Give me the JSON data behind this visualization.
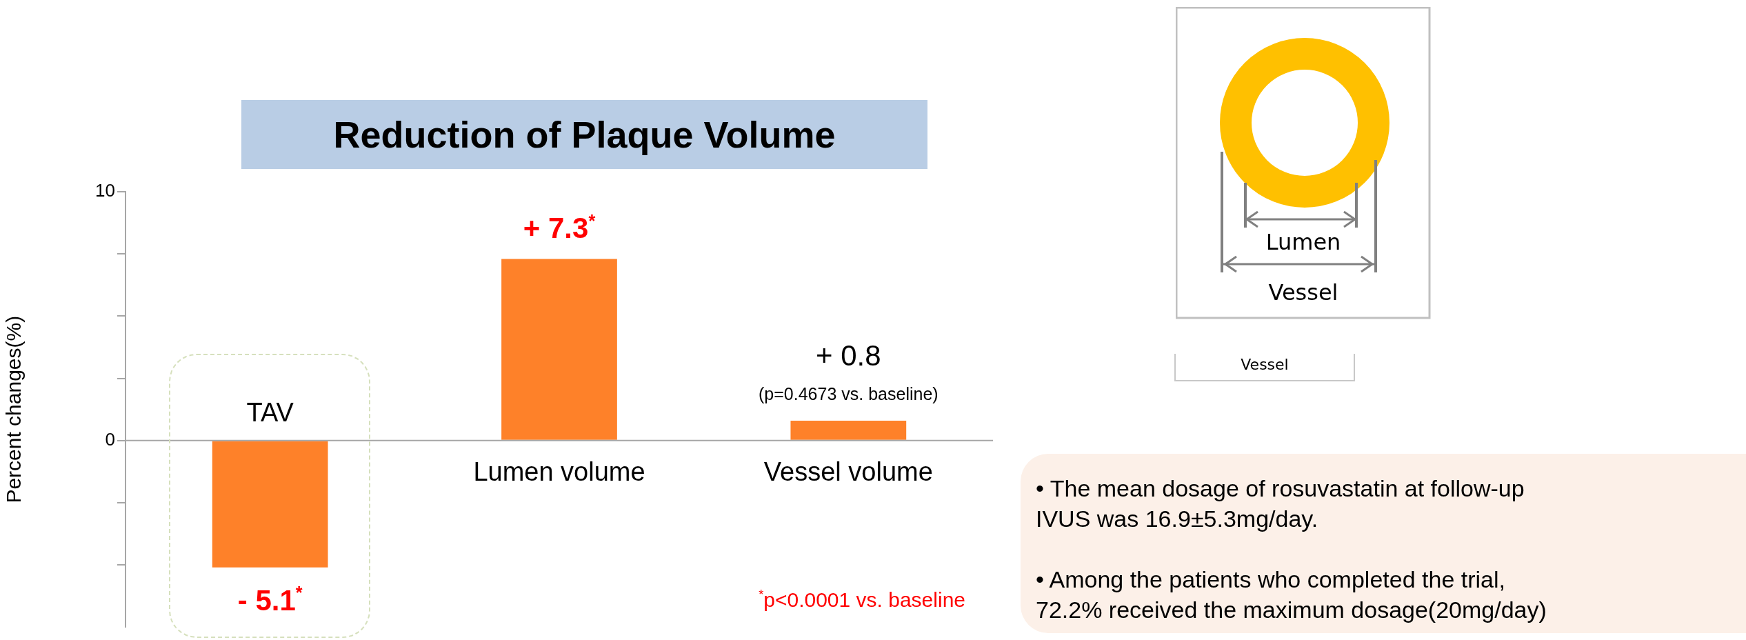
{
  "chart_data": {
    "type": "bar",
    "title": "Reduction of Plaque Volume",
    "ylabel": "Percent changes(%)",
    "categories": [
      "TAV",
      "Lumen volume",
      "Vessel volume"
    ],
    "values": [
      -5.1,
      7.3,
      0.8
    ],
    "color": "#fe8129",
    "value_labels": [
      "- 5.1$^{*}$",
      "+ 7.3$^{*}$",
      "+ 0.8"
    ],
    "ylim": [
      -7.5,
      10
    ],
    "yticks": [
      10,
      {
        "value": 7.5,
        "label": null
      },
      {
        "value": 5,
        "label": null
      },
      {
        "value": 2.5,
        "label": null
      },
      0,
      {
        "value": -2.5,
        "label": null
      },
      {
        "value": -5,
        "label": null
      }
    ],
    "grid": false,
    "legend": false,
    "annotations": [
      {
        "text": "(p=0.4673 vs. baseline)",
        "x": "Vessel volume",
        "y": 0.8
      },
      "$^{*}$p<0.0001 vs. baseline",
      "Lumen",
      "Vessel",
      "Vessel",
      "• The mean dosage of rosuvastatin at follow-up IVUS was 16.9±5.3mg/day.",
      "• Among the patients who completed the trial, 72.2% received the maximum dosage(20mg/day)"
    ]
  }
}
